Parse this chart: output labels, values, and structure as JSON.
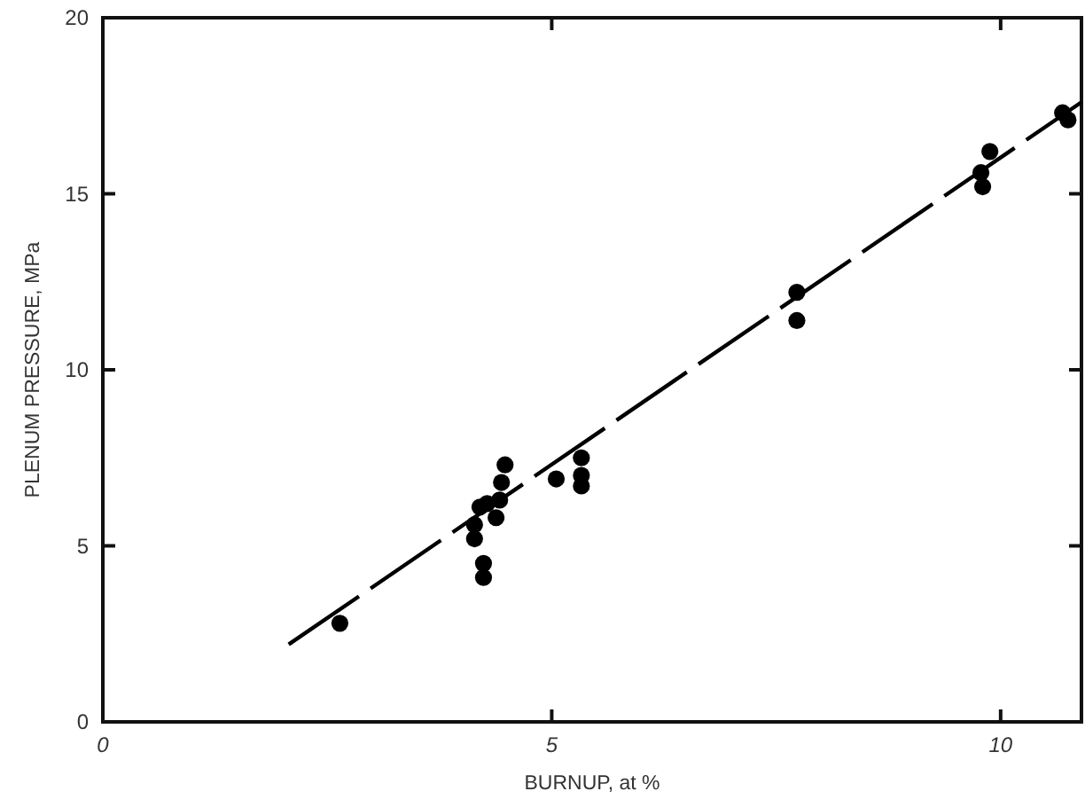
{
  "chart_data": {
    "type": "scatter",
    "xlabel": "BURNUP, at %",
    "ylabel": "PLENUM PRESSURE, MPa",
    "xlim": [
      0,
      10.9
    ],
    "xticks": [
      0,
      5,
      10
    ],
    "ylim": [
      0,
      20
    ],
    "yticks": [
      0,
      5,
      10,
      15,
      20
    ],
    "grid": false,
    "series": [
      {
        "marker": "circle",
        "color": "#000000",
        "x": [
          2.64,
          4.14,
          4.14,
          4.24,
          4.24,
          4.2,
          4.28,
          4.38,
          4.42,
          4.44,
          4.48,
          5.05,
          5.33,
          5.33,
          5.33,
          7.73,
          7.73,
          9.88,
          9.78,
          9.8,
          10.69,
          10.75
        ],
        "values": [
          2.8,
          5.2,
          5.6,
          4.5,
          4.1,
          6.1,
          6.2,
          5.8,
          6.3,
          6.8,
          7.3,
          6.9,
          7.0,
          7.5,
          6.7,
          12.2,
          11.4,
          16.2,
          15.6,
          15.2,
          17.3,
          17.1
        ]
      },
      {
        "type": "line",
        "line_style": "dashed",
        "marker": "none",
        "color": "#000000",
        "x": [
          2.07,
          10.9
        ],
        "values": [
          2.2,
          17.6
        ]
      }
    ]
  }
}
